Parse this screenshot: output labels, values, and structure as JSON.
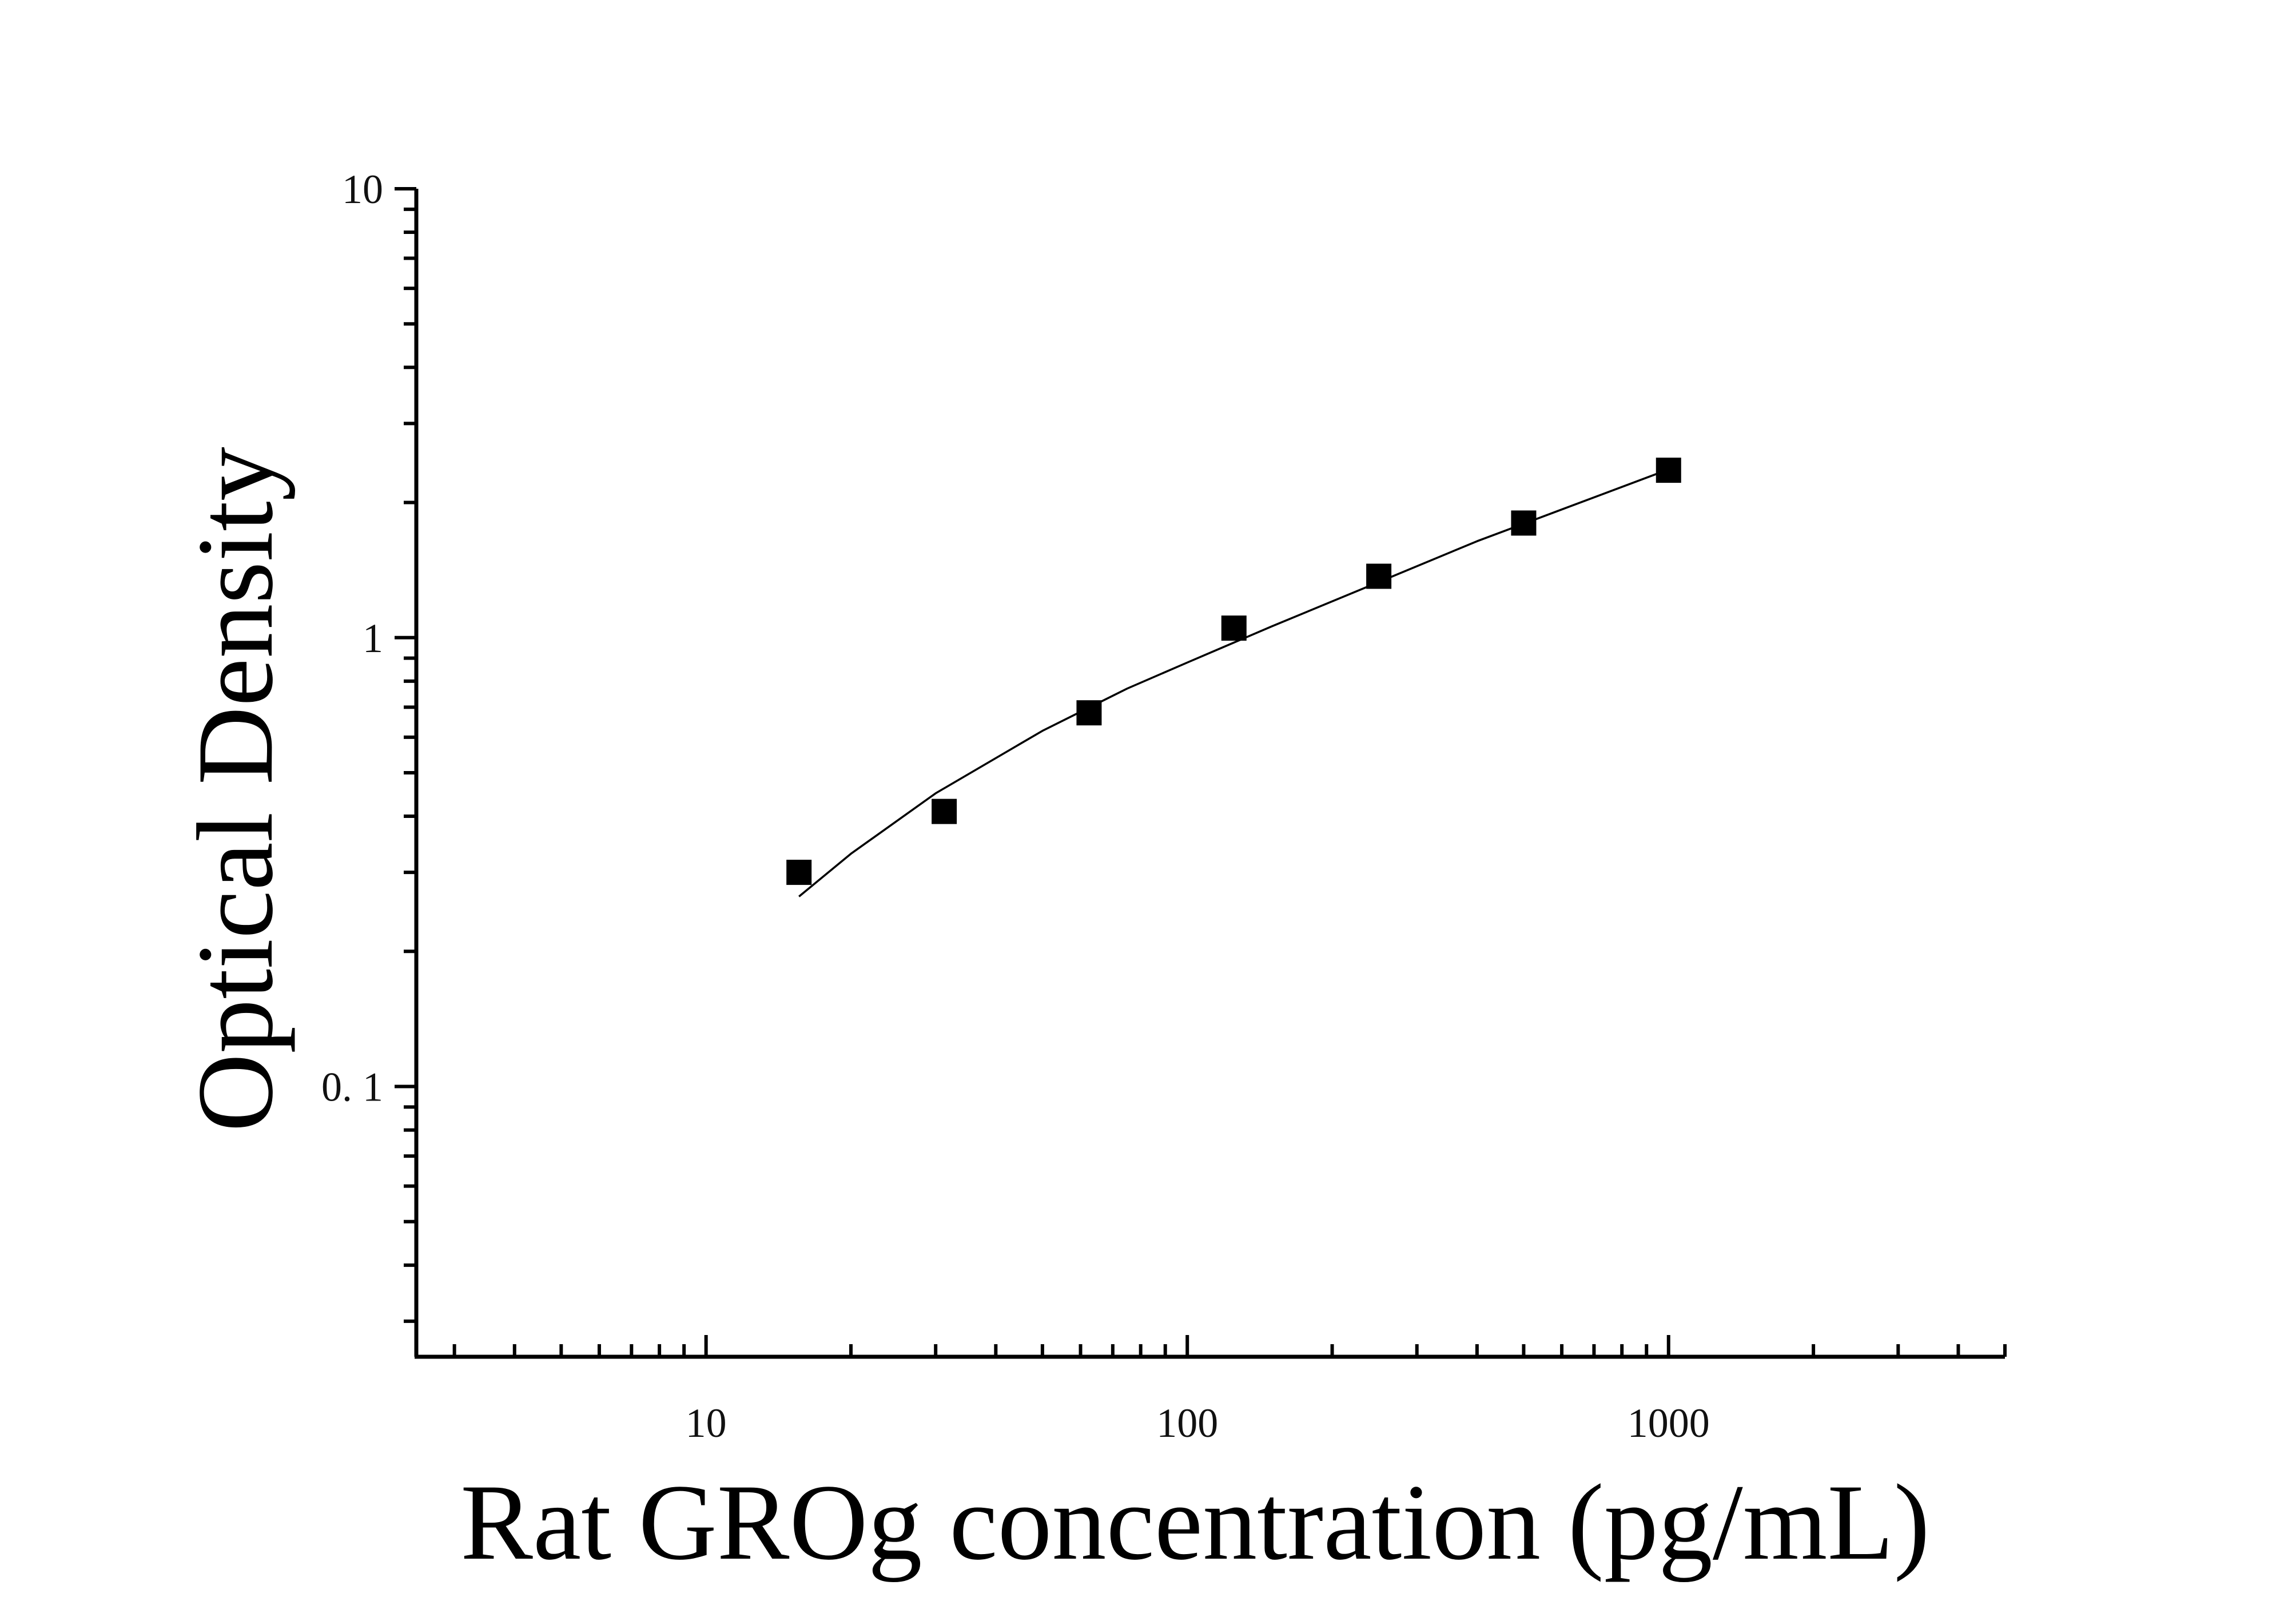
{
  "chart_data": {
    "type": "scatter",
    "title": "",
    "xlabel": "Rat GROg concentration (pg/mL)",
    "ylabel": "Optical Density",
    "x_scale": "log",
    "y_scale": "log",
    "xlim": [
      2.5,
      5000
    ],
    "ylim": [
      0.025,
      10
    ],
    "x_ticks": [
      {
        "value": 10,
        "label": "10"
      },
      {
        "value": 100,
        "label": "100"
      },
      {
        "value": 1000,
        "label": "1000"
      }
    ],
    "y_ticks": [
      {
        "value": 0.1,
        "label": "0. 1"
      },
      {
        "value": 1,
        "label": "1"
      },
      {
        "value": 10,
        "label": "10"
      }
    ],
    "grid": false,
    "legend": "none",
    "series": [
      {
        "type": "scatter",
        "marker": "square",
        "color": "#000000",
        "x": [
          15.6,
          31.25,
          62.5,
          125,
          250,
          500,
          1000
        ],
        "y": [
          0.3,
          0.41,
          0.68,
          1.05,
          1.37,
          1.8,
          2.36
        ]
      },
      {
        "type": "line",
        "color": "#000000",
        "x": [
          15.6,
          20,
          30,
          50,
          75,
          100,
          150,
          250,
          400,
          600,
          1000
        ],
        "y": [
          0.265,
          0.33,
          0.45,
          0.62,
          0.77,
          0.88,
          1.06,
          1.33,
          1.64,
          1.93,
          2.37
        ]
      }
    ]
  }
}
